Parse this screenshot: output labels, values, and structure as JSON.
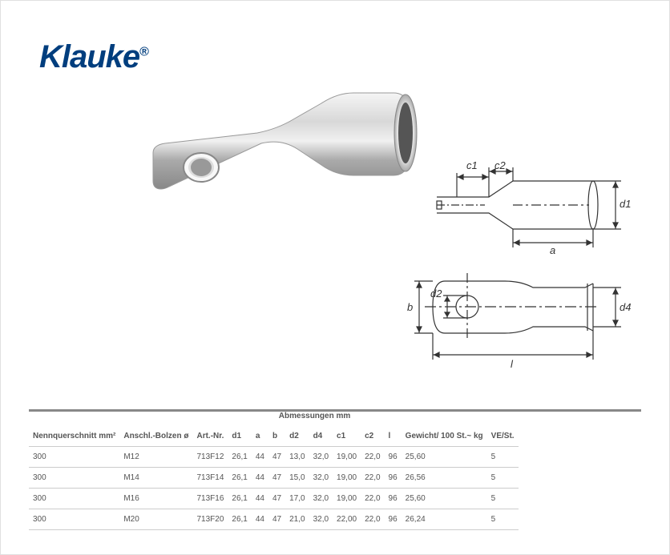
{
  "logo": {
    "text": "Klauke",
    "reg": "®"
  },
  "diagram_labels": {
    "c1": "c1",
    "c2": "c2",
    "d1": "d1",
    "a": "a",
    "b": "b",
    "d2": "d2",
    "d4": "d4",
    "l": "l"
  },
  "table": {
    "headers": {
      "nenn": "Nennquerschnitt mm²",
      "bolzen": "Anschl.-Bolzen ø",
      "artnr": "Art.-Nr.",
      "abmess": "Abmessungen mm",
      "d1": "d1",
      "a": "a",
      "b": "b",
      "d2": "d2",
      "d4": "d4",
      "c1": "c1",
      "c2": "c2",
      "l": "l",
      "gewicht": "Gewicht/ 100 St.~ kg",
      "ve": "VE/St."
    },
    "rows": [
      {
        "nenn": "300",
        "bolzen": "M12",
        "artnr": "713F12",
        "d1": "26,1",
        "a": "44",
        "b": "47",
        "d2": "13,0",
        "d4": "32,0",
        "c1": "19,00",
        "c2": "22,0",
        "l": "96",
        "gewicht": "25,60",
        "ve": "5"
      },
      {
        "nenn": "300",
        "bolzen": "M14",
        "artnr": "713F14",
        "d1": "26,1",
        "a": "44",
        "b": "47",
        "d2": "15,0",
        "d4": "32,0",
        "c1": "19,00",
        "c2": "22,0",
        "l": "96",
        "gewicht": "26,56",
        "ve": "5"
      },
      {
        "nenn": "300",
        "bolzen": "M16",
        "artnr": "713F16",
        "d1": "26,1",
        "a": "44",
        "b": "47",
        "d2": "17,0",
        "d4": "32,0",
        "c1": "19,00",
        "c2": "22,0",
        "l": "96",
        "gewicht": "25,60",
        "ve": "5"
      },
      {
        "nenn": "300",
        "bolzen": "M20",
        "artnr": "713F20",
        "d1": "26,1",
        "a": "44",
        "b": "47",
        "d2": "21,0",
        "d4": "32,0",
        "c1": "22,00",
        "c2": "22,0",
        "l": "96",
        "gewicht": "26,24",
        "ve": "5"
      }
    ]
  }
}
